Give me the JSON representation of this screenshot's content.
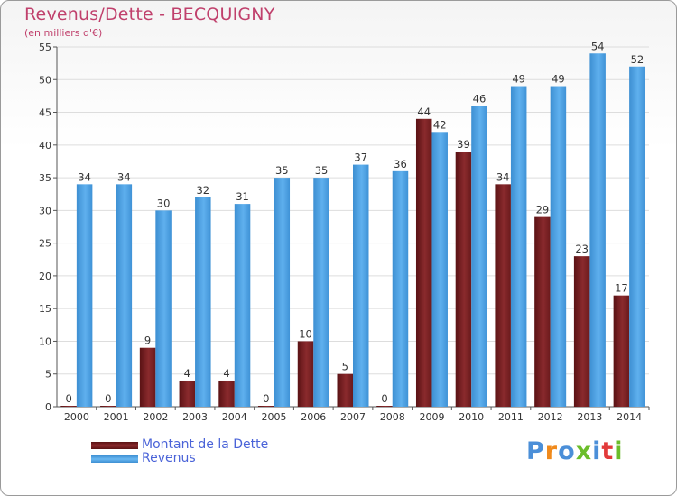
{
  "header": {
    "title": "Revenus/Dette - BECQUIGNY",
    "subtitle": "(en milliers d'€)"
  },
  "logo": {
    "text": "Proxiti",
    "letters": [
      "P",
      "r",
      "o",
      "x",
      "i",
      "t",
      "i"
    ],
    "colors": [
      "#4b8fd8",
      "#f08a1c",
      "#4b8fd8",
      "#6bbd2a",
      "#4b8fd8",
      "#e23a3a",
      "#6bbd2a"
    ]
  },
  "colors": {
    "dette": "#7a1f22",
    "revenus": "#4a9fe0",
    "axis_text": "#333333",
    "grid": "#dddddd"
  },
  "chart_data": {
    "type": "bar",
    "title": "Revenus/Dette - BECQUIGNY",
    "subtitle": "(en milliers d'€)",
    "categories": [
      "2000",
      "2001",
      "2002",
      "2003",
      "2004",
      "2005",
      "2006",
      "2007",
      "2008",
      "2009",
      "2010",
      "2011",
      "2012",
      "2013",
      "2014"
    ],
    "series": [
      {
        "name": "Montant de la Dette",
        "color": "#7a1f22",
        "values": [
          0,
          0,
          9,
          4,
          4,
          0,
          10,
          5,
          0,
          44,
          39,
          34,
          29,
          23,
          17
        ]
      },
      {
        "name": "Revenus",
        "color": "#4a9fe0",
        "values": [
          34,
          34,
          30,
          32,
          31,
          35,
          35,
          37,
          36,
          42,
          46,
          49,
          49,
          54,
          52
        ]
      }
    ],
    "ylim": [
      0,
      55
    ],
    "yticks": [
      0,
      5,
      10,
      15,
      20,
      25,
      30,
      35,
      40,
      45,
      50,
      55
    ],
    "grid": true,
    "legend": "bottom-left"
  }
}
